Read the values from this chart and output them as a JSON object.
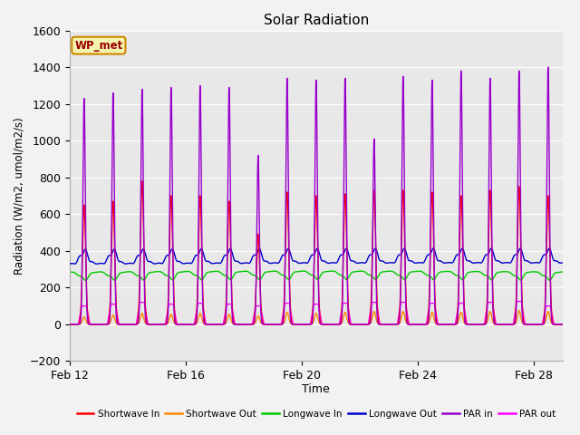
{
  "title": "Solar Radiation",
  "ylabel": "Radiation (W/m2, umol/m2/s)",
  "xlabel": "Time",
  "ylim": [
    -200,
    1600
  ],
  "yticks": [
    -200,
    0,
    200,
    400,
    600,
    800,
    1000,
    1200,
    1400,
    1600
  ],
  "x_start_day": 12,
  "n_days": 17,
  "plot_bg_color": "#e8e8e8",
  "grid_color": "#ffffff",
  "annotation_text": "WP_met",
  "annotation_bg": "#f5f5b0",
  "annotation_border": "#cc8800",
  "series": [
    {
      "name": "Shortwave In",
      "color": "#ff0000",
      "lw": 1.0
    },
    {
      "name": "Shortwave Out",
      "color": "#ff8800",
      "lw": 1.0
    },
    {
      "name": "Longwave In",
      "color": "#00cc00",
      "lw": 1.0
    },
    {
      "name": "Longwave Out",
      "color": "#0000cc",
      "lw": 1.0
    },
    {
      "name": "PAR in",
      "color": "#9900cc",
      "lw": 1.0
    },
    {
      "name": "PAR out",
      "color": "#ff00ff",
      "lw": 1.0
    }
  ],
  "xtick_labels": [
    "Feb 12",
    "Feb 16",
    "Feb 20",
    "Feb 24",
    "Feb 28"
  ],
  "xtick_positions": [
    12,
    16,
    20,
    24,
    28
  ],
  "par_in_peaks": [
    1230,
    1260,
    1280,
    1290,
    1300,
    1290,
    920,
    1340,
    1330,
    1340,
    1010,
    1350,
    1330,
    1380,
    1340,
    1380,
    1400
  ],
  "sw_in_peaks": [
    650,
    670,
    780,
    700,
    700,
    670,
    490,
    720,
    700,
    710,
    730,
    730,
    720,
    700,
    730,
    750,
    700
  ],
  "sw_out_peaks": [
    40,
    50,
    60,
    55,
    60,
    55,
    45,
    65,
    60,
    65,
    70,
    70,
    65,
    65,
    70,
    75,
    70
  ],
  "par_out_peaks": [
    100,
    110,
    120,
    110,
    115,
    110,
    100,
    115,
    110,
    115,
    120,
    120,
    115,
    115,
    120,
    125,
    100
  ]
}
